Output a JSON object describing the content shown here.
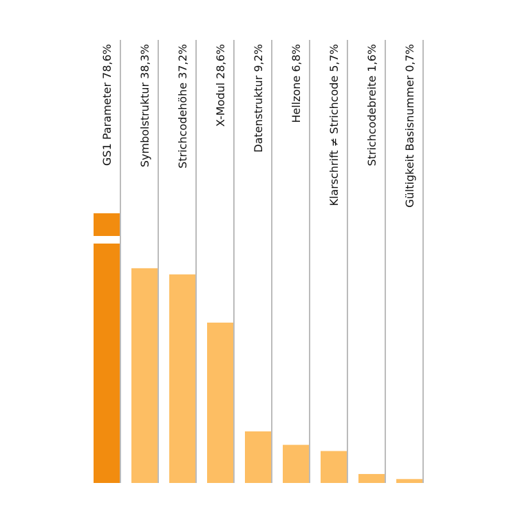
{
  "chart_data": {
    "type": "bar",
    "orientation": "vertical",
    "title": "",
    "xlabel": "",
    "ylabel": "",
    "categories": [
      "GS1 Parameter 78,6%",
      "Symbolstruktur 38,3%",
      "Strichcodehöhe 37,2%",
      "X-Modul 28,6%",
      "Datenstruktur 9,2%",
      "Hellzone 6,8%",
      "Klarschrift ≠ Strichcode 5,7%",
      "Strichcodebreite 1,6%",
      "Gültigkeit Basisnummer 0,7%"
    ],
    "values": [
      78.6,
      38.3,
      37.2,
      28.6,
      9.2,
      6.8,
      5.7,
      1.6,
      0.7
    ],
    "axis_break_on_first_bar": true,
    "grid": false,
    "legend": "none",
    "colors": {
      "highlight_bar": "#F28C0F",
      "bar": "#FDBE63",
      "divider": "#777777",
      "text": "#111111",
      "background": "#FFFFFF"
    }
  }
}
